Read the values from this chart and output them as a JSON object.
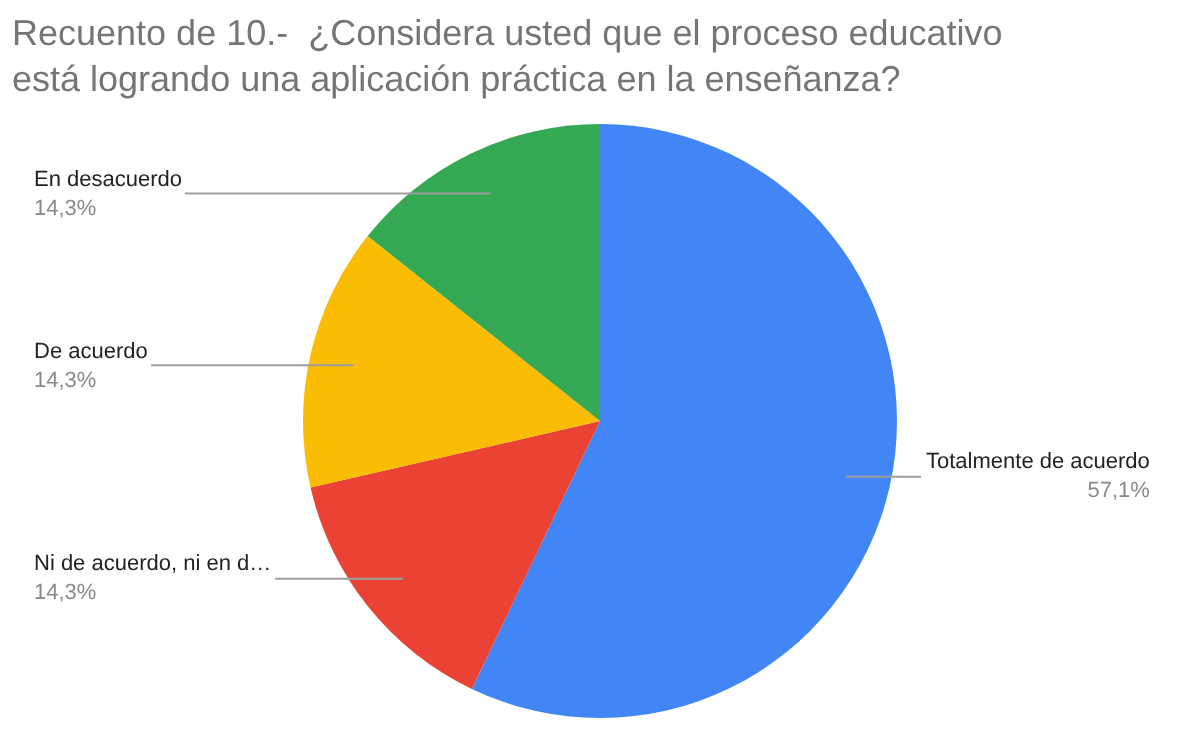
{
  "chart_data": {
    "type": "pie",
    "title": "Recuento de 10.-  ¿Considera usted que el proceso educativo está logrando una aplicación práctica en la enseñanza?",
    "categories": [
      "Totalmente de acuerdo",
      "Ni de acuerdo, ni en d…",
      "De acuerdo",
      "En desacuerdo"
    ],
    "values": [
      57.1,
      14.3,
      14.3,
      14.3
    ],
    "value_labels": [
      "57,1%",
      "14,3%",
      "14,3%",
      "14,3%"
    ],
    "colors": [
      "#4285f4",
      "#ea4335",
      "#fbbc04",
      "#34a853"
    ],
    "legend": false
  }
}
